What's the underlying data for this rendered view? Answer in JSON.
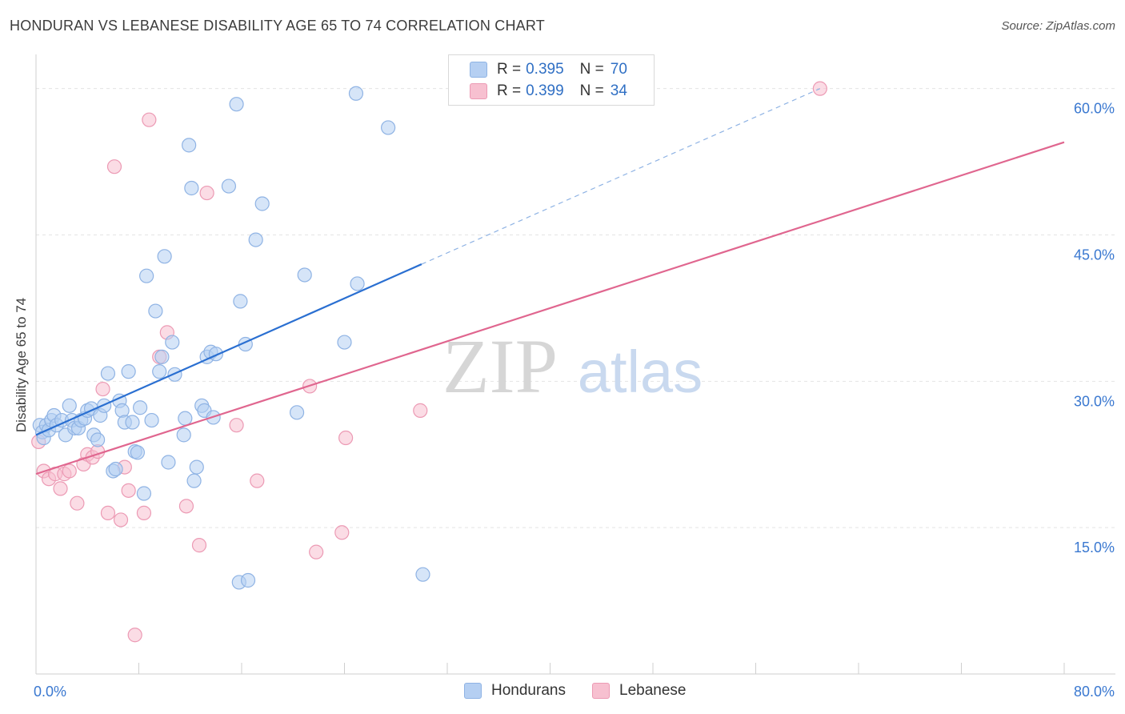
{
  "title": "HONDURAN VS LEBANESE DISABILITY AGE 65 TO 74 CORRELATION CHART",
  "source": "Source: ZipAtlas.com",
  "watermark": {
    "zip": "ZIP",
    "atlas": "atlas"
  },
  "legend": {
    "series1": {
      "r_label": "R =",
      "r_value": "0.395",
      "n_label": "N =",
      "n_value": "70"
    },
    "series2": {
      "r_label": "R =",
      "r_value": "0.399",
      "n_label": "N =",
      "n_value": "34"
    }
  },
  "bottom_legend": {
    "hondurans": "Hondurans",
    "lebanese": "Lebanese"
  },
  "colors": {
    "blue_fill": "#b5cff2",
    "blue_stroke": "#8fb3e4",
    "blue_line": "#2a6fd1",
    "pink_fill": "#f7c0d0",
    "pink_stroke": "#ec9ab4",
    "pink_line": "#e0668f",
    "tick_label": "#3a78d0",
    "grid": "#e4e4e4"
  },
  "chart_data": {
    "type": "scatter",
    "title": "HONDURAN VS LEBANESE DISABILITY AGE 65 TO 74 CORRELATION CHART",
    "xlabel": "",
    "ylabel": "Disability Age 65 to 74",
    "xlim": [
      0,
      80
    ],
    "ylim": [
      0,
      63.5
    ],
    "x_tick_labels": [
      "0.0%",
      "80.0%"
    ],
    "y_ticks": [
      15,
      30,
      45,
      60
    ],
    "y_tick_labels": [
      "15.0%",
      "30.0%",
      "45.0%",
      "60.0%"
    ],
    "series": [
      {
        "name": "Hondurans",
        "r": 0.395,
        "n": 70,
        "trend": {
          "x0": 0,
          "y0": 24.5,
          "x1": 30,
          "y1": 42.0,
          "dash_x1": 61,
          "dash_y1": 60.0
        },
        "points": [
          [
            0.3,
            25.5
          ],
          [
            0.5,
            24.8
          ],
          [
            0.6,
            24.2
          ],
          [
            0.8,
            25.5
          ],
          [
            1.0,
            25.0
          ],
          [
            1.2,
            26.0
          ],
          [
            1.4,
            26.5
          ],
          [
            1.6,
            25.5
          ],
          [
            2.0,
            26.0
          ],
          [
            2.3,
            24.5
          ],
          [
            2.6,
            27.5
          ],
          [
            2.8,
            26.0
          ],
          [
            3.0,
            25.2
          ],
          [
            3.3,
            25.2
          ],
          [
            3.5,
            26.0
          ],
          [
            3.8,
            26.2
          ],
          [
            4.0,
            27.0
          ],
          [
            4.3,
            27.2
          ],
          [
            4.5,
            24.5
          ],
          [
            4.8,
            24.0
          ],
          [
            5.0,
            26.5
          ],
          [
            5.3,
            27.5
          ],
          [
            5.6,
            30.8
          ],
          [
            6.0,
            20.8
          ],
          [
            6.2,
            21.0
          ],
          [
            6.5,
            28.0
          ],
          [
            6.7,
            27.0
          ],
          [
            6.9,
            25.8
          ],
          [
            7.2,
            31.0
          ],
          [
            7.5,
            25.8
          ],
          [
            7.7,
            22.8
          ],
          [
            7.9,
            22.7
          ],
          [
            8.1,
            27.3
          ],
          [
            8.4,
            18.5
          ],
          [
            8.6,
            40.8
          ],
          [
            9.0,
            26.0
          ],
          [
            9.3,
            37.2
          ],
          [
            9.6,
            31.0
          ],
          [
            9.8,
            32.5
          ],
          [
            10.0,
            42.8
          ],
          [
            10.3,
            21.7
          ],
          [
            10.6,
            34.0
          ],
          [
            10.8,
            30.7
          ],
          [
            11.5,
            24.5
          ],
          [
            11.6,
            26.2
          ],
          [
            11.9,
            54.2
          ],
          [
            12.1,
            49.8
          ],
          [
            12.3,
            19.8
          ],
          [
            12.5,
            21.2
          ],
          [
            12.9,
            27.5
          ],
          [
            13.1,
            27.0
          ],
          [
            13.3,
            32.5
          ],
          [
            13.6,
            33.0
          ],
          [
            13.8,
            26.3
          ],
          [
            14.0,
            32.8
          ],
          [
            15.0,
            50.0
          ],
          [
            15.6,
            58.4
          ],
          [
            15.8,
            9.4
          ],
          [
            15.9,
            38.2
          ],
          [
            16.3,
            33.8
          ],
          [
            16.5,
            9.6
          ],
          [
            17.1,
            44.5
          ],
          [
            17.6,
            48.2
          ],
          [
            20.3,
            26.8
          ],
          [
            20.9,
            40.9
          ],
          [
            24.0,
            34.0
          ],
          [
            24.9,
            59.5
          ],
          [
            25.0,
            40.0
          ],
          [
            27.4,
            56.0
          ],
          [
            30.1,
            10.2
          ]
        ]
      },
      {
        "name": "Lebanese",
        "r": 0.399,
        "n": 34,
        "trend": {
          "x0": 0,
          "y0": 20.5,
          "x1": 80,
          "y1": 54.5
        },
        "points": [
          [
            0.2,
            23.8
          ],
          [
            0.6,
            20.8
          ],
          [
            1.0,
            20.0
          ],
          [
            1.5,
            20.5
          ],
          [
            1.9,
            19.0
          ],
          [
            2.2,
            20.5
          ],
          [
            2.6,
            20.8
          ],
          [
            3.2,
            17.5
          ],
          [
            3.7,
            21.5
          ],
          [
            4.0,
            22.5
          ],
          [
            4.4,
            22.2
          ],
          [
            4.8,
            22.8
          ],
          [
            5.2,
            29.2
          ],
          [
            5.6,
            16.5
          ],
          [
            6.1,
            52.0
          ],
          [
            6.6,
            15.8
          ],
          [
            6.9,
            21.2
          ],
          [
            7.2,
            18.8
          ],
          [
            7.7,
            4.0
          ],
          [
            8.4,
            16.5
          ],
          [
            8.8,
            56.8
          ],
          [
            9.6,
            32.5
          ],
          [
            10.2,
            35.0
          ],
          [
            11.7,
            17.2
          ],
          [
            12.7,
            13.2
          ],
          [
            13.3,
            49.3
          ],
          [
            15.6,
            25.5
          ],
          [
            17.2,
            19.8
          ],
          [
            21.3,
            29.5
          ],
          [
            21.8,
            12.5
          ],
          [
            23.8,
            14.5
          ],
          [
            24.1,
            24.2
          ],
          [
            29.9,
            27.0
          ],
          [
            61.0,
            60.0
          ]
        ]
      }
    ]
  }
}
